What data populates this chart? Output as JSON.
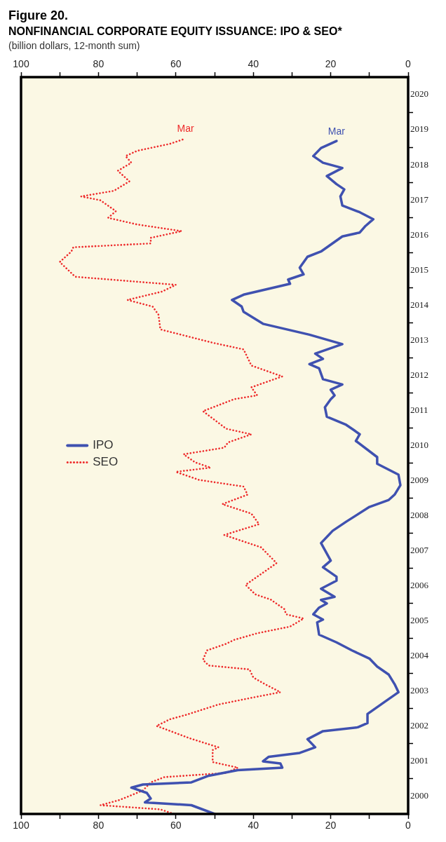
{
  "chart_data": {
    "type": "line",
    "orientation": "horizontal",
    "title": "NONFINANCIAL CORPORATE EQUITY ISSUANCE: IPO & SEO*",
    "subtitle": "(billion dollars, 12-month sum)",
    "annotations": [
      "Figure 20.",
      {
        "text": "Mar",
        "x": 18.5,
        "y": 2019.18
      },
      {
        "text": "Mar",
        "x": 57.5,
        "y": 2019.25
      }
    ],
    "series": [
      {
        "name": "IPO",
        "color": "#3f51b0",
        "line_style": "solid",
        "x": [
          2000.0,
          2000.25,
          2000.33,
          2000.44,
          2000.6,
          2000.75,
          2000.84,
          2000.9,
          2001.09,
          2001.25,
          2001.32,
          2001.44,
          2001.5,
          2001.63,
          2001.74,
          2001.9,
          2002.13,
          2002.36,
          2002.47,
          2002.59,
          2002.85,
          2003.2,
          2003.47,
          2003.7,
          2003.97,
          2004.2,
          2004.43,
          2004.66,
          2004.89,
          2005.11,
          2005.46,
          2005.54,
          2005.69,
          2005.88,
          2006.0,
          2006.1,
          2006.19,
          2006.42,
          2006.65,
          2006.76,
          2007.03,
          2007.22,
          2007.72,
          2008.07,
          2008.33,
          2008.75,
          2008.95,
          2009.1,
          2009.37,
          2009.67,
          2009.98,
          2010.17,
          2010.63,
          2010.82,
          2010.94,
          2011.09,
          2011.32,
          2011.59,
          2011.82,
          2011.93,
          2012.09,
          2012.24,
          2012.39,
          2012.7,
          2012.82,
          2012.97,
          2013.12,
          2013.39,
          2013.66,
          2013.97,
          2014.31,
          2014.46,
          2014.65,
          2014.8,
          2015.11,
          2015.23,
          2015.38,
          2015.57,
          2015.88,
          2016.03,
          2016.46,
          2016.57,
          2016.76,
          2016.95,
          2017.15,
          2017.34,
          2017.6,
          2017.8,
          2017.95,
          2018.18,
          2018.41,
          2018.56,
          2018.75,
          2018.98,
          2019.18
        ],
        "values": [
          50,
          56,
          68,
          66.5,
          67.5,
          71.5,
          68.5,
          56,
          51.5,
          44,
          32.5,
          33,
          37.5,
          36,
          28,
          24,
          26,
          22,
          13,
          10.5,
          10.5,
          6,
          2.5,
          3.5,
          5,
          8,
          10,
          14.5,
          18.5,
          23,
          23.5,
          22,
          24.5,
          23,
          21,
          22.5,
          19,
          22.5,
          18.5,
          18.5,
          22,
          20,
          22.5,
          19.5,
          16,
          10,
          5,
          3.5,
          2,
          2.5,
          8,
          8,
          13.5,
          12.5,
          14,
          16,
          21,
          21.5,
          20,
          19,
          20,
          17,
          22,
          23,
          25.5,
          22,
          24,
          17,
          25.5,
          37.5,
          42.5,
          43,
          45.5,
          42.5,
          30.5,
          31,
          27,
          28,
          26,
          22.5,
          17,
          12.5,
          11,
          9,
          12.5,
          17,
          17.5,
          16.5,
          18.5,
          21,
          17,
          22,
          24.5,
          22.5,
          18.5
        ]
      },
      {
        "name": "SEO",
        "color": "#ee2b2b",
        "line_style": "dotted",
        "x": [
          2000.0,
          2000.13,
          2000.25,
          2000.4,
          2000.67,
          2000.9,
          2001.05,
          2001.17,
          2001.32,
          2001.48,
          2001.82,
          2001.9,
          2002.16,
          2002.51,
          2002.7,
          2002.82,
          2003.12,
          2003.31,
          2003.47,
          2003.7,
          2003.89,
          2004.12,
          2004.23,
          2004.39,
          2004.66,
          2004.85,
          2004.96,
          2005.15,
          2005.34,
          2005.57,
          2005.69,
          2005.84,
          2006.11,
          2006.26,
          2006.53,
          2007.03,
          2007.15,
          2007.6,
          2007.95,
          2008.26,
          2008.56,
          2008.83,
          2009.1,
          2009.33,
          2009.52,
          2009.75,
          2009.87,
          2010.02,
          2010.25,
          2010.44,
          2010.59,
          2010.82,
          2010.98,
          2011.48,
          2011.82,
          2011.93,
          2012.16,
          2012.47,
          2012.78,
          2013.24,
          2013.43,
          2013.81,
          2014.23,
          2014.46,
          2014.65,
          2014.89,
          2015.08,
          2015.31,
          2015.73,
          2016.03,
          2016.15,
          2016.26,
          2016.42,
          2016.61,
          2016.8,
          2016.99,
          2017.18,
          2017.49,
          2017.6,
          2017.76,
          2018.03,
          2018.33,
          2018.56,
          2018.75,
          2018.9,
          2019.1,
          2019.25
        ],
        "values": [
          60.5,
          64,
          79.5,
          74.5,
          68.5,
          66.5,
          63,
          47,
          44,
          50.5,
          50.5,
          49,
          56.5,
          65,
          61.5,
          57.5,
          49,
          40.5,
          33,
          37,
          40,
          41,
          51.5,
          53,
          52,
          47,
          45,
          39,
          30.5,
          27,
          31.5,
          32,
          35.5,
          39.5,
          42,
          35.5,
          34,
          38,
          47.5,
          38.5,
          40.5,
          48,
          41.5,
          42.5,
          54,
          60,
          51,
          55,
          58,
          47.5,
          46.5,
          40.5,
          47,
          53,
          45,
          39,
          40.5,
          32.5,
          40.5,
          42.5,
          50.5,
          64,
          64.5,
          66,
          72.5,
          63.5,
          60,
          86,
          90,
          87,
          86.5,
          66.5,
          66.5,
          58.5,
          70,
          77.5,
          75.5,
          79.5,
          84.5,
          76,
          72,
          75,
          71.5,
          73,
          70,
          61.5,
          57.5
        ]
      }
    ],
    "ylim": [
      2000,
      2021
    ],
    "yticks": [
      {
        "value": 2000,
        "label": null
      },
      {
        "value": 2000.5,
        "label": "2000"
      },
      {
        "value": 2001,
        "label": null
      },
      {
        "value": 2001.5,
        "label": "2001"
      },
      {
        "value": 2002,
        "label": null
      },
      {
        "value": 2002.5,
        "label": "2002"
      },
      {
        "value": 2003,
        "label": null
      },
      {
        "value": 2003.5,
        "label": "2003"
      },
      {
        "value": 2004,
        "label": null
      },
      {
        "value": 2004.5,
        "label": "2004"
      },
      {
        "value": 2005,
        "label": null
      },
      {
        "value": 2005.5,
        "label": "2005"
      },
      {
        "value": 2006,
        "label": null
      },
      {
        "value": 2006.5,
        "label": "2006"
      },
      {
        "value": 2007,
        "label": null
      },
      {
        "value": 2007.5,
        "label": "2007"
      },
      {
        "value": 2008,
        "label": null
      },
      {
        "value": 2008.5,
        "label": "2008"
      },
      {
        "value": 2009,
        "label": null
      },
      {
        "value": 2009.5,
        "label": "2009"
      },
      {
        "value": 2010,
        "label": null
      },
      {
        "value": 2010.5,
        "label": "2010"
      },
      {
        "value": 2011,
        "label": null
      },
      {
        "value": 2011.5,
        "label": "2011"
      },
      {
        "value": 2012,
        "label": null
      },
      {
        "value": 2012.5,
        "label": "2012"
      },
      {
        "value": 2013,
        "label": null
      },
      {
        "value": 2013.5,
        "label": "2013"
      },
      {
        "value": 2014,
        "label": null
      },
      {
        "value": 2014.5,
        "label": "2014"
      },
      {
        "value": 2015,
        "label": null
      },
      {
        "value": 2015.5,
        "label": "2015"
      },
      {
        "value": 2016,
        "label": null
      },
      {
        "value": 2016.5,
        "label": "2016"
      },
      {
        "value": 2017,
        "label": null
      },
      {
        "value": 2017.5,
        "label": "2017"
      },
      {
        "value": 2018,
        "label": null
      },
      {
        "value": 2018.5,
        "label": "2018"
      },
      {
        "value": 2019,
        "label": null
      },
      {
        "value": 2019.5,
        "label": "2019"
      },
      {
        "value": 2020,
        "label": null
      },
      {
        "value": 2020.5,
        "label": "2020"
      },
      {
        "value": 2021,
        "label": null
      }
    ],
    "xlim": [
      100,
      0
    ],
    "xticks": [
      0,
      {
        "value": 10,
        "label": null
      },
      20,
      {
        "value": 30,
        "label": null
      },
      40,
      {
        "value": 50,
        "label": null
      },
      60,
      {
        "value": 70,
        "label": null
      },
      80,
      {
        "value": 90,
        "label": null
      },
      100
    ],
    "x2lim": [
      100,
      0
    ],
    "x2ticks": [
      0,
      {
        "value": 10,
        "label": null
      },
      20,
      {
        "value": 30,
        "label": null
      },
      40,
      {
        "value": 50,
        "label": null
      },
      60,
      {
        "value": 70,
        "label": null
      },
      80,
      {
        "value": 90,
        "label": null
      },
      100
    ],
    "legend": "left",
    "marker": "none"
  }
}
